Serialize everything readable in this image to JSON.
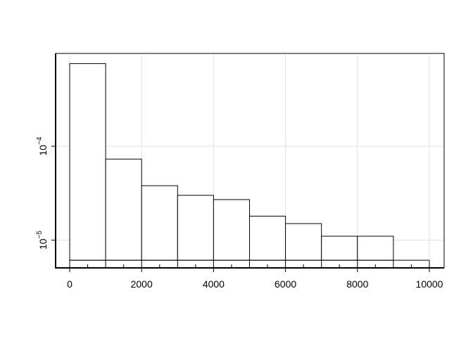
{
  "chart_data": {
    "type": "bar",
    "subtype": "histogram",
    "title": "",
    "xlabel": "",
    "ylabel": "",
    "y_scale": "log",
    "bin_edges": [
      0,
      1000,
      2000,
      3000,
      4000,
      5000,
      6000,
      7000,
      8000,
      9000,
      10000
    ],
    "values": [
      0.00076,
      7.3e-05,
      3.8e-05,
      3e-05,
      2.7e-05,
      1.8e-05,
      1.5e-05,
      1.1e-05,
      1.1e-05,
      6.1e-06
    ],
    "bar_floor": 6.1e-06,
    "xlim": [
      -400,
      10400
    ],
    "ylim": [
      5.1e-06,
      0.00096
    ],
    "x_ticks": [
      0,
      2000,
      4000,
      6000,
      8000,
      10000
    ],
    "x_tick_labels": [
      "0",
      "2000",
      "4000",
      "6000",
      "8000",
      "10000"
    ],
    "y_ticks": [
      1e-05,
      0.0001
    ],
    "y_tick_labels": [
      {
        "base": "10",
        "exp": "−5"
      },
      {
        "base": "10",
        "exp": "−4"
      }
    ],
    "grid": true,
    "bar_fill": "#ffffff",
    "bar_stroke": "#000000",
    "grid_color": "#e0e0e0"
  }
}
